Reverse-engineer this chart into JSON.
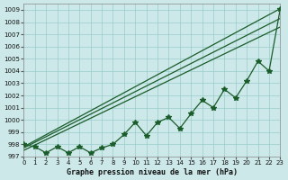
{
  "xlabel": "Graphe pression niveau de la mer (hPa)",
  "background_color": "#cce8e8",
  "grid_color": "#99cccc",
  "line_color": "#1a5c2a",
  "ylim": [
    997,
    1009.5
  ],
  "xlim": [
    0,
    23
  ],
  "yticks": [
    997,
    998,
    999,
    1000,
    1001,
    1002,
    1003,
    1004,
    1005,
    1006,
    1007,
    1008,
    1009
  ],
  "xticks": [
    0,
    1,
    2,
    3,
    4,
    5,
    6,
    7,
    8,
    9,
    10,
    11,
    12,
    13,
    14,
    15,
    16,
    17,
    18,
    19,
    20,
    21,
    22,
    23
  ],
  "zigzag": [
    998.0,
    997.8,
    997.3,
    997.8,
    997.3,
    997.8,
    997.3,
    997.7,
    998.0,
    998.8,
    999.8,
    998.7,
    999.8,
    1000.2,
    999.3,
    1000.5,
    1001.6,
    1001.0,
    1002.5,
    1001.8,
    1003.2,
    1004.8,
    1004.0,
    1009.1
  ],
  "line1": [
    997.8,
    1009.1
  ],
  "line1_x": [
    0,
    23
  ],
  "line2": [
    997.7,
    1008.3
  ],
  "line2_x": [
    0,
    23
  ],
  "line3": [
    997.5,
    1007.6
  ],
  "line3_x": [
    0,
    23
  ]
}
